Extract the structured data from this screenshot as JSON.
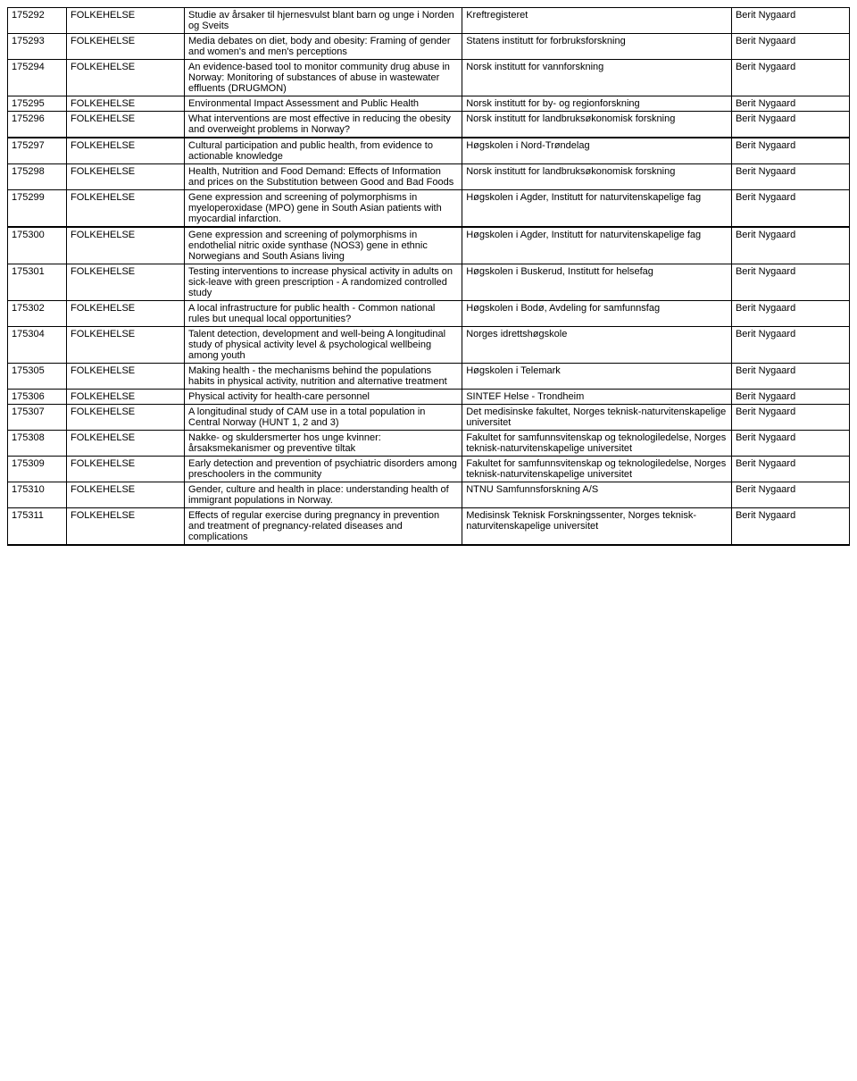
{
  "groups": [
    {
      "rows": [
        {
          "id": "175292",
          "cat": "FOLKEHELSE",
          "title": "Studie av årsaker til hjernesvulst blant barn og unge i Norden og Sveits",
          "org": "Kreftregisteret",
          "person": "Berit Nygaard"
        },
        {
          "id": "175293",
          "cat": "FOLKEHELSE",
          "title": "Media debates on diet, body and obesity: Framing of gender and women's and men's perceptions",
          "org": "Statens institutt for forbruksforskning",
          "person": "Berit Nygaard"
        },
        {
          "id": "175294",
          "cat": "FOLKEHELSE",
          "title": "An evidence-based tool to monitor community drug abuse in Norway: Monitoring of substances of abuse in wastewater effluents (DRUGMON)",
          "org": "Norsk institutt for vannforskning",
          "person": "Berit Nygaard"
        },
        {
          "id": "175295",
          "cat": "FOLKEHELSE",
          "title": "Environmental Impact Assessment and Public Health",
          "org": "Norsk institutt for by- og regionforskning",
          "person": "Berit Nygaard"
        },
        {
          "id": "175296",
          "cat": "FOLKEHELSE",
          "title": "What interventions are most effective in reducing the obesity and overweight problems in Norway?",
          "org": "Norsk institutt for landbruksøkonomisk forskning",
          "person": "Berit Nygaard"
        }
      ]
    },
    {
      "rows": [
        {
          "id": "175297",
          "cat": "FOLKEHELSE",
          "title": "Cultural participation and public health, from evidence to actionable knowledge",
          "org": "Høgskolen i Nord-Trøndelag",
          "person": "Berit Nygaard"
        },
        {
          "id": "175298",
          "cat": "FOLKEHELSE",
          "title": "Health, Nutrition and Food Demand: Effects of Information and prices on the Substitution between Good and Bad Foods",
          "org": "Norsk institutt for landbruksøkonomisk forskning",
          "person": "Berit Nygaard"
        },
        {
          "id": "175299",
          "cat": "FOLKEHELSE",
          "title": "Gene expression and screening of polymorphisms in myeloperoxidase (MPO) gene in South Asian patients with myocardial infarction.",
          "org": "Høgskolen i Agder, Institutt for naturvitenskapelige fag",
          "person": "Berit Nygaard"
        }
      ]
    },
    {
      "rows": [
        {
          "id": "175300",
          "cat": "FOLKEHELSE",
          "title": "Gene expression and screening of polymorphisms in endothelial nitric oxide synthase (NOS3) gene in ethnic Norwegians and South Asians living",
          "org": "Høgskolen i Agder, Institutt for naturvitenskapelige fag",
          "person": "Berit Nygaard"
        },
        {
          "id": "175301",
          "cat": "FOLKEHELSE",
          "title": "Testing interventions to increase physical activity in adults on sick-leave with green prescription - A randomized controlled study",
          "org": "Høgskolen i Buskerud, Institutt for helsefag",
          "person": "Berit Nygaard"
        },
        {
          "id": "175302",
          "cat": "FOLKEHELSE",
          "title": "A local infrastructure for public health - Common national rules but unequal local opportunities?",
          "org": "Høgskolen i Bodø, Avdeling for samfunnsfag",
          "person": "Berit Nygaard"
        },
        {
          "id": "175304",
          "cat": "FOLKEHELSE",
          "title": "Talent detection, development and well-being A longitudinal study of physical activity level & psychological wellbeing among youth",
          "org": "Norges idrettshøgskole",
          "person": "Berit Nygaard"
        },
        {
          "id": "175305",
          "cat": "FOLKEHELSE",
          "title": "Making health - the mechanisms behind the populations habits in physical activity, nutrition and alternative treatment",
          "org": "Høgskolen i Telemark",
          "person": "Berit Nygaard"
        },
        {
          "id": "175306",
          "cat": "FOLKEHELSE",
          "title": "Physical activity for health-care personnel",
          "org": "SINTEF Helse - Trondheim",
          "person": "Berit Nygaard"
        },
        {
          "id": "175307",
          "cat": "FOLKEHELSE",
          "title": "A longitudinal study of CAM use in a total population in Central Norway (HUNT 1, 2 and 3)",
          "org": "Det medisinske fakultet, Norges teknisk-naturvitenskapelige universitet",
          "person": "Berit Nygaard"
        },
        {
          "id": "175308",
          "cat": "FOLKEHELSE",
          "title": "Nakke- og skuldersmerter hos unge kvinner: årsaksmekanismer og preventive tiltak",
          "org": "Fakultet for samfunnsvitenskap og teknologiledelse, Norges teknisk-naturvitenskapelige universitet",
          "person": "Berit Nygaard"
        },
        {
          "id": "175309",
          "cat": "FOLKEHELSE",
          "title": "Early detection and prevention of psychiatric disorders among preschoolers in the community",
          "org": "Fakultet for samfunnsvitenskap og teknologiledelse, Norges teknisk-naturvitenskapelige universitet",
          "person": "Berit Nygaard"
        },
        {
          "id": "175310",
          "cat": "FOLKEHELSE",
          "title": "Gender, culture and health in place: understanding health of immigrant populations in Norway.",
          "org": "NTNU Samfunnsforskning A/S",
          "person": "Berit Nygaard"
        },
        {
          "id": "175311",
          "cat": "FOLKEHELSE",
          "title": "Effects of regular exercise during pregnancy in prevention and treatment of pregnancy-related diseases and complications",
          "org": "Medisinsk Teknisk Forskningssenter, Norges teknisk-naturvitenskapelige universitet",
          "person": "Berit Nygaard"
        }
      ]
    }
  ]
}
